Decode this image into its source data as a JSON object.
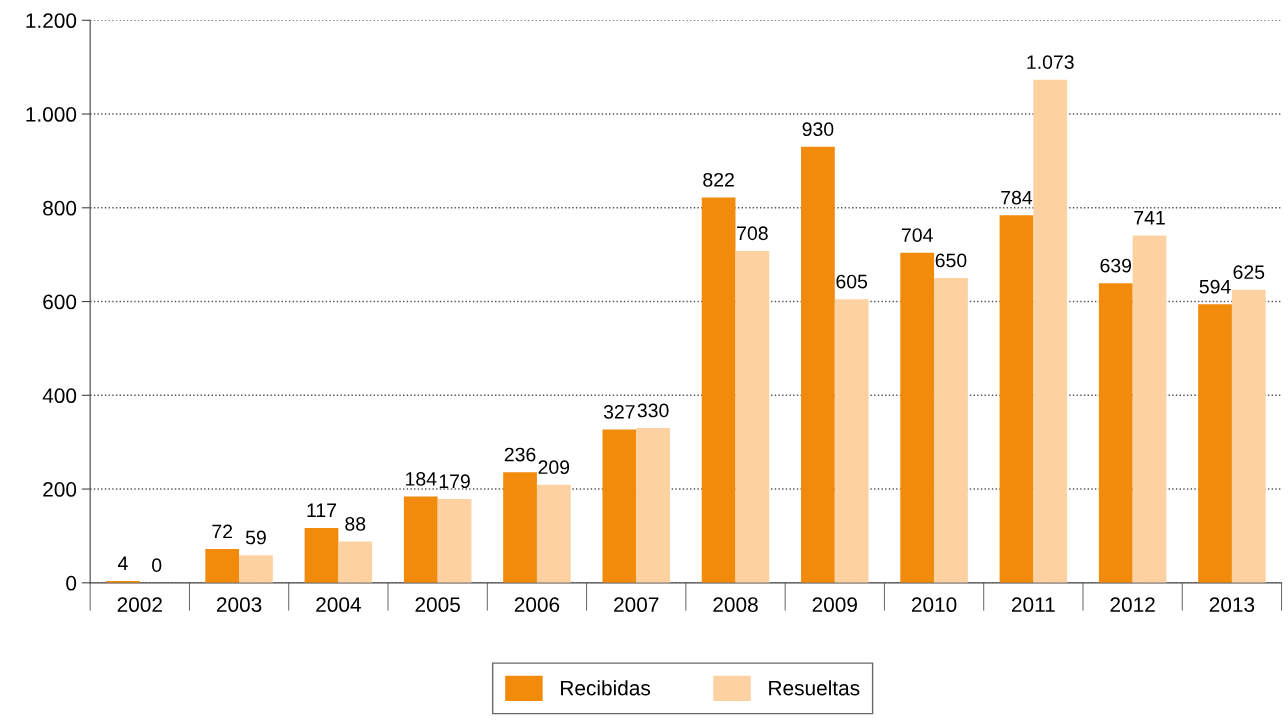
{
  "chart_data": {
    "type": "bar",
    "categories": [
      "2002",
      "2003",
      "2004",
      "2005",
      "2006",
      "2007",
      "2008",
      "2009",
      "2010",
      "2011",
      "2012",
      "2013"
    ],
    "series": [
      {
        "name": "Recibidas",
        "color": "#f28b0c",
        "values": [
          4,
          72,
          117,
          184,
          236,
          327,
          822,
          930,
          704,
          784,
          639,
          594
        ],
        "value_labels": [
          "4",
          "72",
          "117",
          "184",
          "236",
          "327",
          "822",
          "930",
          "704",
          "784",
          "639",
          "594"
        ]
      },
      {
        "name": "Resueltas",
        "color": "#fdd1a1",
        "values": [
          0,
          59,
          88,
          179,
          209,
          330,
          708,
          605,
          650,
          1073,
          741,
          625
        ],
        "value_labels": [
          "0",
          "59",
          "88",
          "179",
          "209",
          "330",
          "708",
          "605",
          "650",
          "1.073",
          "741",
          "625"
        ]
      }
    ],
    "ylim": [
      0,
      1200
    ],
    "yticks": [
      0,
      200,
      400,
      600,
      800,
      {
        "value": 1000,
        "label": "1.000"
      },
      {
        "value": 1200,
        "label": "1.200"
      }
    ],
    "grid": "y",
    "line_style": "dotted",
    "legend": "bottom"
  }
}
